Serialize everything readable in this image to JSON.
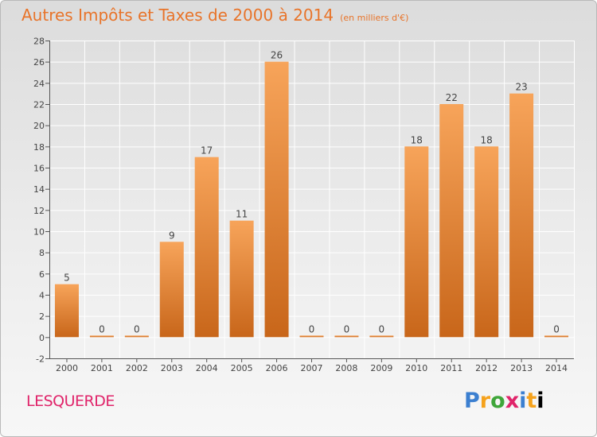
{
  "title": "Autres Impôts et Taxes de 2000 à 2014",
  "subtitle": "(en milliers d'€)",
  "location": "LESQUERDE",
  "brand": "Proxiti",
  "colors": {
    "title": "#e8742a",
    "location": "#e0246a",
    "bar_top": "#f7a45a",
    "bar_bottom": "#c8661a",
    "grid": "#ffffff",
    "axis": "#555555"
  },
  "chart_data": {
    "type": "bar",
    "title": "Autres Impôts et Taxes de 2000 à 2014",
    "subtitle": "(en milliers d'€)",
    "categories": [
      "2000",
      "2001",
      "2002",
      "2003",
      "2004",
      "2005",
      "2006",
      "2007",
      "2008",
      "2009",
      "2010",
      "2011",
      "2012",
      "2013",
      "2014"
    ],
    "values": [
      5,
      0,
      0,
      9,
      17,
      11,
      26,
      0,
      0,
      0,
      18,
      22,
      18,
      23,
      0
    ],
    "xlabel": "",
    "ylabel": "",
    "ylim": [
      -2,
      28
    ],
    "yticks": [
      -2,
      0,
      2,
      4,
      6,
      8,
      10,
      12,
      14,
      16,
      18,
      20,
      22,
      24,
      26,
      28
    ],
    "grid": true,
    "legend": "none"
  }
}
